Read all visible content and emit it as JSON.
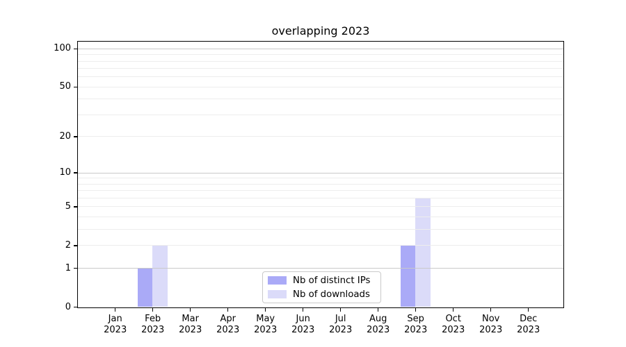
{
  "figure": {
    "background": "#ffffff"
  },
  "chart_data": {
    "type": "bar",
    "title": "overlapping 2023",
    "xlabel": "",
    "ylabel": "",
    "x_year_label": "2023",
    "categories": [
      "Jan",
      "Feb",
      "Mar",
      "Apr",
      "May",
      "Jun",
      "Jul",
      "Aug",
      "Sep",
      "Oct",
      "Nov",
      "Dec"
    ],
    "series": [
      {
        "name": "Nb of distinct IPs",
        "color": "#aaaaf7",
        "values": [
          0,
          1,
          0,
          0,
          0,
          0,
          0,
          0,
          2,
          0,
          0,
          0
        ]
      },
      {
        "name": "Nb of downloads",
        "color": "#dbdbf9",
        "values": [
          0,
          2,
          0,
          0,
          0,
          0,
          0,
          0,
          6,
          0,
          0,
          0
        ]
      }
    ],
    "yticks": [
      0,
      1,
      2,
      5,
      10,
      20,
      50,
      100
    ],
    "yscale": "log1p",
    "ylim": [
      0,
      113
    ],
    "grid": "on",
    "legend_position": "lower center",
    "colors": {
      "major_grid": "#c9c9c9",
      "minor_grid": "#ededed",
      "spine": "#000000",
      "text": "#000000"
    }
  }
}
